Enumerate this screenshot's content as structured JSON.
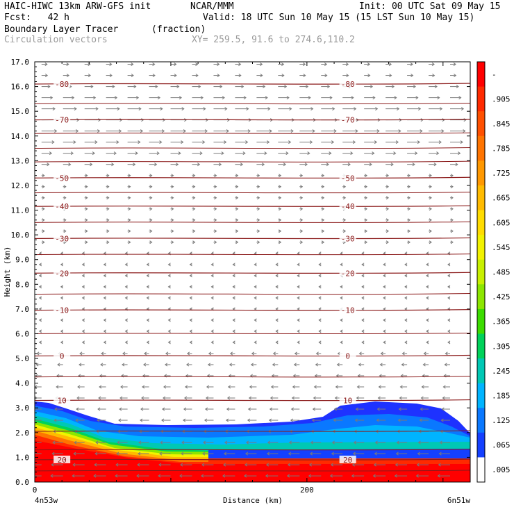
{
  "header": {
    "model": "HAIC-HIWC 13km ARW-GFS init",
    "org": "NCAR/MMM",
    "init": "Init: 00 UTC Sat 09 May 15",
    "fcst": "Fcst:   42 h",
    "valid": "Valid: 18 UTC Sun 10 May 15 (15 LST Sun 10 May 15)",
    "field": "Boundary Layer Tracer",
    "field_units": "(fraction)",
    "vectors": "Circulation vectors",
    "xy": "XY= 259.5, 91.6 to 274.6,110.2"
  },
  "chart_data": {
    "type": "cross-section",
    "title": "Boundary Layer Tracer",
    "ylabel": "Height (km)",
    "xlabel": "Distance (km)",
    "x_start_label": "4n53w",
    "x_end_label": "6n51w",
    "xlim": [
      0,
      320
    ],
    "ylim": [
      0,
      17
    ],
    "y_ticks": [
      "0.0",
      "1.0",
      "2.0",
      "3.0",
      "4.0",
      "5.0",
      "6.0",
      "7.0",
      "8.0",
      "9.0",
      "10.0",
      "11.0",
      "12.0",
      "13.0",
      "14.0",
      "15.0",
      "16.0",
      "17.0"
    ],
    "x_ticks": [
      {
        "value": 0,
        "label": "0"
      },
      {
        "value": 200,
        "label": "200"
      }
    ],
    "colorbar": {
      "labels": [
        "-",
        ".905",
        ".845",
        ".785",
        ".725",
        ".665",
        ".605",
        ".545",
        ".485",
        ".425",
        ".365",
        ".305",
        ".245",
        ".185",
        ".125",
        ".065",
        ".005"
      ],
      "colors": [
        "#ff0000",
        "#ff2a00",
        "#ff5000",
        "#ff7400",
        "#ff9800",
        "#ffbb00",
        "#ffdc00",
        "#f2f200",
        "#c8f000",
        "#8ce600",
        "#3cdc00",
        "#00d25a",
        "#00c8b4",
        "#00b4ff",
        "#0a78ff",
        "#1440ff",
        "#ffffff"
      ]
    },
    "contours": [
      {
        "label": "-80",
        "height": 16.1
      },
      {
        "label": "-70",
        "height": 14.65
      },
      {
        "label": "-50",
        "height": 12.3
      },
      {
        "label": "-40",
        "height": 11.15
      },
      {
        "label": "-30",
        "height": 9.85
      },
      {
        "label": "-20",
        "height": 8.45
      },
      {
        "label": "-10",
        "height": 6.95
      },
      {
        "label": "0",
        "height": 5.1
      },
      {
        "label": "10",
        "height": 3.3
      },
      {
        "label": "20",
        "height": 0.9
      }
    ]
  }
}
